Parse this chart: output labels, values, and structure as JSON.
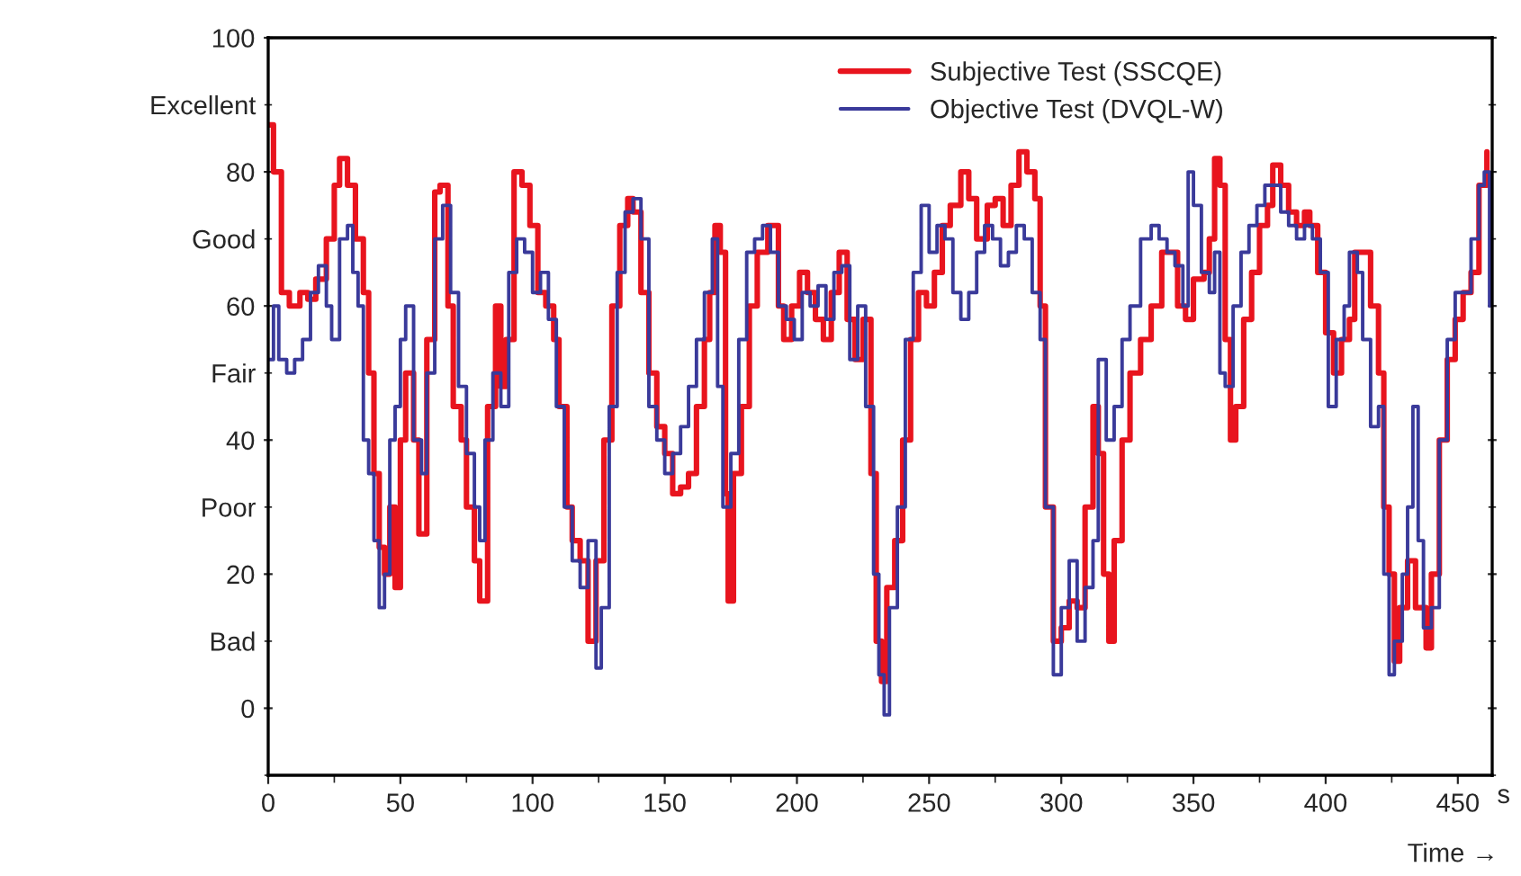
{
  "chart_data": {
    "type": "step",
    "xlabel": "s",
    "annotations": [
      "Time →"
    ],
    "xlim": [
      0,
      463
    ],
    "xticks": [
      0,
      50,
      100,
      150,
      200,
      250,
      300,
      350,
      400,
      450
    ],
    "ylim": [
      -10,
      100
    ],
    "yticks": [
      {
        "value": -10,
        "label": null
      },
      0,
      {
        "value": 10,
        "label": "Bad"
      },
      20,
      {
        "value": 30,
        "label": "Poor"
      },
      40,
      {
        "value": 50,
        "label": "Fair"
      },
      60,
      {
        "value": 70,
        "label": "Good"
      },
      80,
      {
        "value": 90,
        "label": "Excellent"
      },
      100
    ],
    "legend": "top right",
    "grid": false,
    "series": [
      {
        "name": "Subjective Test (SSCQE)",
        "color": "#e8141e",
        "x": [
          0,
          2,
          5,
          8,
          12,
          15,
          18,
          22,
          25,
          27,
          30,
          33,
          36,
          38,
          40,
          42,
          44,
          46,
          48,
          50,
          52,
          55,
          57,
          60,
          63,
          65,
          68,
          70,
          73,
          75,
          78,
          80,
          83,
          86,
          88,
          90,
          93,
          96,
          99,
          102,
          105,
          108,
          110,
          113,
          115,
          118,
          121,
          124,
          127,
          130,
          133,
          136,
          138,
          141,
          144,
          147,
          150,
          153,
          156,
          159,
          162,
          165,
          167,
          169,
          171,
          173,
          174,
          176,
          179,
          182,
          185,
          189,
          191,
          193,
          195,
          198,
          201,
          204,
          207,
          210,
          213,
          216,
          219,
          222,
          225,
          228,
          230,
          232,
          234,
          237,
          240,
          243,
          246,
          249,
          252,
          255,
          258,
          262,
          265,
          268,
          272,
          275,
          278,
          281,
          284,
          287,
          290,
          292,
          294,
          297,
          300,
          303,
          306,
          309,
          312,
          314,
          316,
          318,
          320,
          323,
          326,
          330,
          334,
          338,
          341,
          344,
          347,
          350,
          354,
          356,
          358,
          360,
          362,
          364,
          366,
          369,
          372,
          375,
          378,
          380,
          383,
          386,
          389,
          392,
          394,
          397,
          400,
          403,
          406,
          409,
          411,
          414,
          417,
          420,
          422,
          424,
          426,
          428,
          431,
          434,
          438,
          440,
          443,
          446,
          449,
          452,
          455,
          458,
          461
        ],
        "values": [
          87,
          80,
          62,
          60,
          62,
          61,
          64,
          70,
          78,
          82,
          78,
          70,
          62,
          50,
          35,
          24,
          20,
          30,
          18,
          40,
          50,
          40,
          26,
          55,
          77,
          78,
          60,
          45,
          40,
          30,
          22,
          16,
          45,
          60,
          48,
          55,
          80,
          78,
          72,
          62,
          60,
          55,
          45,
          30,
          25,
          22,
          10,
          22,
          40,
          60,
          72,
          76,
          74,
          62,
          50,
          42,
          38,
          32,
          33,
          35,
          45,
          55,
          62,
          72,
          68,
          32,
          16,
          35,
          45,
          60,
          68,
          72,
          72,
          60,
          55,
          60,
          65,
          62,
          58,
          55,
          62,
          68,
          58,
          52,
          58,
          35,
          10,
          4,
          18,
          25,
          40,
          55,
          62,
          60,
          65,
          72,
          75,
          80,
          76,
          70,
          75,
          76,
          72,
          78,
          83,
          80,
          76,
          60,
          30,
          10,
          12,
          16,
          15,
          30,
          45,
          38,
          20,
          10,
          25,
          40,
          50,
          55,
          60,
          68,
          68,
          60,
          58,
          64,
          65,
          70,
          82,
          78,
          55,
          40,
          45,
          58,
          65,
          72,
          75,
          81,
          78,
          74,
          72,
          74,
          72,
          65,
          56,
          50,
          55,
          58,
          68,
          68,
          60,
          50,
          30,
          20,
          7,
          15,
          22,
          15,
          9,
          20,
          40,
          52,
          58,
          62,
          65,
          78,
          83
        ]
      },
      {
        "name": "Objective Test (DVQL-W)",
        "color": "#3a3a9a",
        "x": [
          0,
          2,
          4,
          7,
          10,
          13,
          16,
          19,
          22,
          24,
          27,
          30,
          32,
          34,
          36,
          38,
          40,
          42,
          44,
          46,
          48,
          50,
          52,
          55,
          58,
          60,
          63,
          66,
          69,
          72,
          75,
          78,
          80,
          82,
          85,
          88,
          91,
          94,
          97,
          100,
          103,
          106,
          109,
          112,
          115,
          118,
          121,
          124,
          126,
          129,
          132,
          135,
          138,
          141,
          144,
          147,
          150,
          153,
          156,
          159,
          162,
          165,
          168,
          170,
          172,
          175,
          178,
          181,
          184,
          187,
          190,
          193,
          196,
          199,
          202,
          205,
          208,
          211,
          214,
          217,
          220,
          223,
          226,
          229,
          231,
          233,
          235,
          238,
          241,
          244,
          247,
          250,
          253,
          256,
          259,
          262,
          265,
          268,
          271,
          274,
          277,
          280,
          283,
          286,
          289,
          292,
          294,
          297,
          300,
          303,
          306,
          309,
          312,
          314,
          317,
          320,
          323,
          326,
          330,
          334,
          337,
          340,
          343,
          346,
          348,
          350,
          353,
          356,
          358,
          360,
          362,
          365,
          368,
          371,
          374,
          377,
          380,
          383,
          386,
          389,
          392,
          395,
          398,
          401,
          404,
          407,
          409,
          412,
          414,
          417,
          420,
          422,
          424,
          426,
          429,
          431,
          433,
          435,
          437,
          440,
          443,
          446,
          449,
          452,
          455,
          458,
          460,
          462
        ],
        "values": [
          52,
          60,
          52,
          50,
          52,
          55,
          62,
          66,
          60,
          55,
          70,
          72,
          65,
          60,
          40,
          35,
          25,
          15,
          20,
          40,
          45,
          55,
          60,
          40,
          35,
          50,
          70,
          75,
          62,
          48,
          38,
          30,
          25,
          40,
          50,
          45,
          65,
          70,
          68,
          62,
          65,
          58,
          45,
          30,
          22,
          18,
          25,
          6,
          15,
          45,
          65,
          74,
          76,
          70,
          45,
          40,
          35,
          38,
          42,
          48,
          55,
          62,
          70,
          48,
          30,
          38,
          55,
          68,
          70,
          72,
          68,
          60,
          58,
          55,
          62,
          60,
          63,
          58,
          65,
          66,
          52,
          60,
          45,
          20,
          5,
          -1,
          15,
          30,
          55,
          65,
          75,
          68,
          72,
          70,
          62,
          58,
          62,
          68,
          72,
          70,
          66,
          68,
          72,
          70,
          62,
          55,
          30,
          5,
          15,
          22,
          10,
          18,
          25,
          52,
          40,
          45,
          55,
          60,
          70,
          72,
          70,
          68,
          66,
          60,
          80,
          75,
          65,
          62,
          68,
          50,
          48,
          60,
          68,
          72,
          75,
          78,
          78,
          74,
          72,
          70,
          72,
          70,
          65,
          45,
          55,
          60,
          68,
          65,
          55,
          42,
          45,
          20,
          5,
          10,
          20,
          30,
          45,
          25,
          12,
          15,
          40,
          55,
          62,
          62,
          70,
          78,
          80,
          60
        ]
      }
    ]
  }
}
